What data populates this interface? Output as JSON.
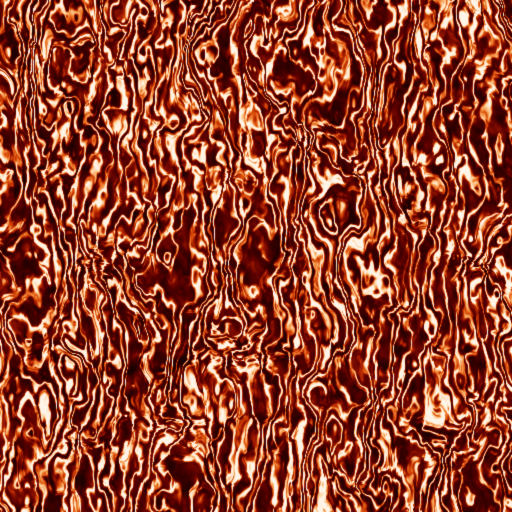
{
  "image": {
    "subject": "turbulent-flow-texture",
    "palette": [
      "#140000",
      "#5a0000",
      "#a01800",
      "#d84808",
      "#f08a3a",
      "#ffd7a8",
      "#fff4e8"
    ]
  }
}
